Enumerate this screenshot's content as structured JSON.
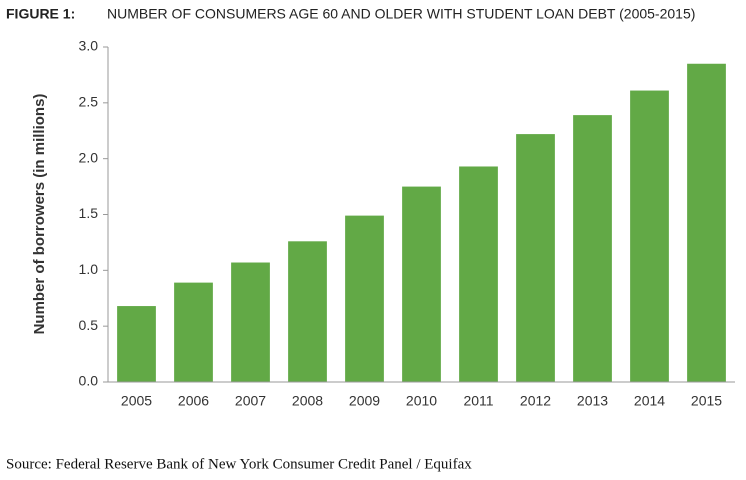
{
  "chart_data": {
    "type": "bar",
    "figure_label": "FIGURE 1:",
    "title": "NUMBER OF CONSUMERS AGE 60 AND OLDER WITH STUDENT LOAN DEBT (2005-2015)",
    "y_label": "Number of borrowers (in millions)",
    "categories": [
      "2005",
      "2006",
      "2007",
      "2008",
      "2009",
      "2010",
      "2011",
      "2012",
      "2013",
      "2014",
      "2015"
    ],
    "values": [
      0.68,
      0.89,
      1.07,
      1.26,
      1.49,
      1.75,
      1.93,
      2.22,
      2.39,
      2.61,
      2.85
    ],
    "color": "#62a946",
    "ylim": [
      0,
      3
    ],
    "yticks": [
      {
        "value": 0,
        "label": "0.0"
      },
      0.5,
      {
        "value": 1,
        "label": "1.0"
      },
      1.5,
      {
        "value": 2,
        "label": "2.0"
      },
      2.5,
      {
        "value": 3,
        "label": "3.0"
      }
    ],
    "grid": false,
    "source": "Source: Federal Reserve Bank of New York Consumer Credit Panel / Equifax"
  }
}
